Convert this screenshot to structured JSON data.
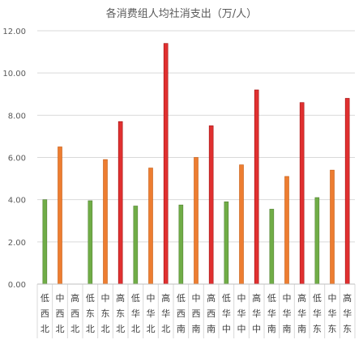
{
  "chart_data": {
    "type": "bar",
    "title": "各消费组人均社消支出（万/人）",
    "xlabel": "",
    "ylabel": "",
    "ylim": [
      0,
      12
    ],
    "yticks": [
      "0.00",
      "2.00",
      "4.00",
      "6.00",
      "8.00",
      "10.00",
      "12.00"
    ],
    "grid": true,
    "categories": [
      [
        "低",
        "西北"
      ],
      [
        "中",
        "西北"
      ],
      [
        "高",
        "西北"
      ],
      [
        "低",
        "东北"
      ],
      [
        "中",
        "东北"
      ],
      [
        "高",
        "东北"
      ],
      [
        "低",
        "华北"
      ],
      [
        "中",
        "华北"
      ],
      [
        "高",
        "华北"
      ],
      [
        "低",
        "西南"
      ],
      [
        "中",
        "西南"
      ],
      [
        "高",
        "西南"
      ],
      [
        "低",
        "华中"
      ],
      [
        "中",
        "华中"
      ],
      [
        "高",
        "华中"
      ],
      [
        "低",
        "华南"
      ],
      [
        "中",
        "华南"
      ],
      [
        "高",
        "华南"
      ],
      [
        "低",
        "华东"
      ],
      [
        "中",
        "华东"
      ],
      [
        "高",
        "华东"
      ]
    ],
    "values": [
      4.0,
      6.5,
      null,
      3.95,
      5.9,
      7.7,
      3.7,
      5.5,
      11.4,
      3.75,
      6.0,
      7.5,
      3.9,
      5.65,
      9.2,
      3.55,
      5.1,
      8.6,
      4.1,
      5.4,
      8.8
    ],
    "colors": {
      "低": "#70ad47",
      "中": "#ed7d31",
      "高": "#e03030"
    },
    "bar_border": {
      "低": "#548235",
      "中": "#c55a11",
      "高": "#a01010"
    },
    "gridline_color": "#d9d9d9"
  }
}
